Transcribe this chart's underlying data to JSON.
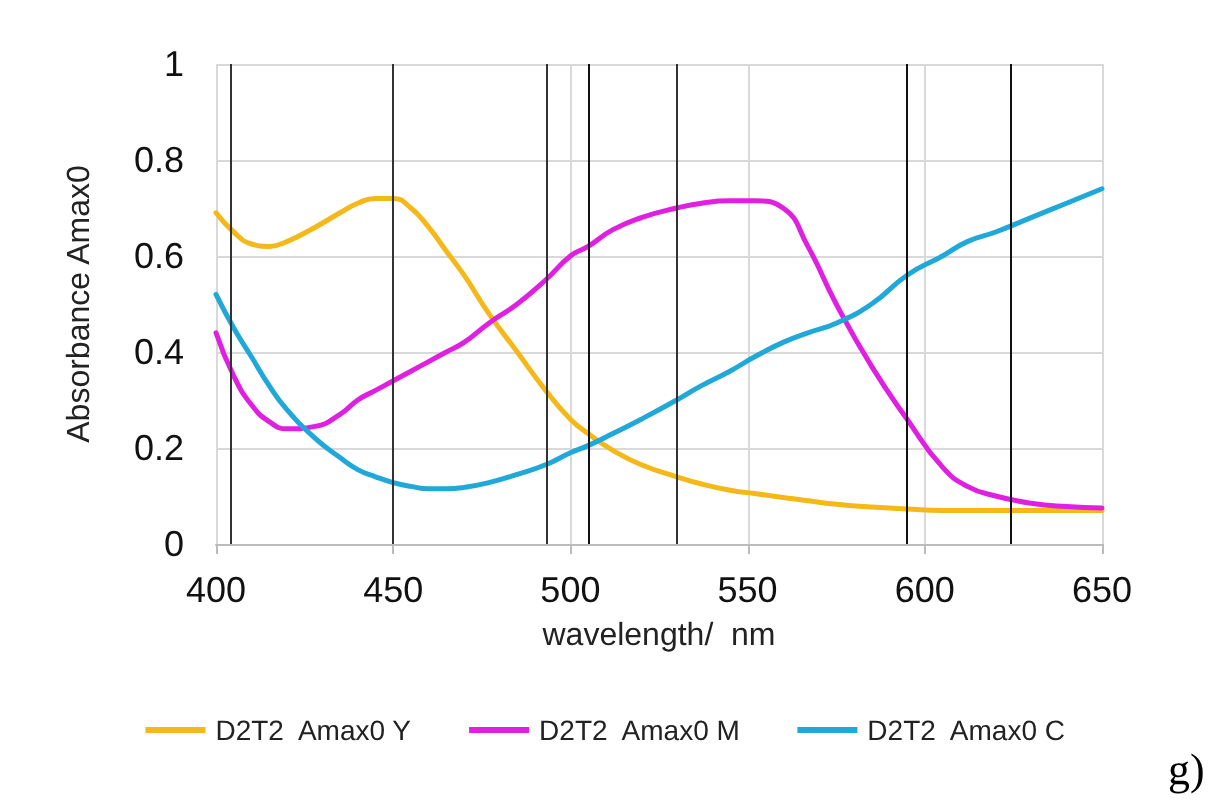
{
  "chart_data": {
    "type": "line",
    "xlabel": "wavelength/  nm",
    "ylabel": "Absorbance Amax0",
    "x": [
      400,
      405,
      410,
      415,
      420,
      428,
      435,
      440,
      445,
      450,
      455,
      460,
      465,
      470,
      477,
      485,
      493,
      500,
      505,
      512,
      520,
      530,
      537,
      545,
      552,
      560,
      567,
      575,
      585,
      595,
      605,
      612,
      620,
      630,
      640,
      650
    ],
    "series": [
      {
        "name": "D2T2  Amax0 Y",
        "color": "#f5b819",
        "values": [
          0.69,
          0.65,
          0.625,
          0.62,
          0.63,
          0.66,
          0.69,
          0.71,
          0.72,
          0.72,
          0.7,
          0.66,
          0.61,
          0.56,
          0.48,
          0.4,
          0.32,
          0.26,
          0.23,
          0.195,
          0.165,
          0.14,
          0.125,
          0.112,
          0.105,
          0.097,
          0.09,
          0.083,
          0.077,
          0.073,
          0.07,
          0.07,
          0.07,
          0.07,
          0.07,
          0.07
        ]
      },
      {
        "name": "D2T2  Amax0 M",
        "color": "#e020e0",
        "values": [
          0.44,
          0.35,
          0.29,
          0.255,
          0.24,
          0.245,
          0.27,
          0.3,
          0.32,
          0.34,
          0.36,
          0.38,
          0.4,
          0.42,
          0.46,
          0.5,
          0.55,
          0.6,
          0.62,
          0.655,
          0.68,
          0.7,
          0.71,
          0.715,
          0.715,
          0.7,
          0.62,
          0.5,
          0.37,
          0.26,
          0.16,
          0.12,
          0.1,
          0.085,
          0.078,
          0.075
        ]
      },
      {
        "name": "D2T2  Amax0 C",
        "color": "#1fa8d8",
        "values": [
          0.52,
          0.45,
          0.39,
          0.33,
          0.28,
          0.22,
          0.18,
          0.155,
          0.14,
          0.128,
          0.12,
          0.115,
          0.115,
          0.118,
          0.128,
          0.145,
          0.165,
          0.19,
          0.205,
          0.23,
          0.26,
          0.3,
          0.33,
          0.36,
          0.39,
          0.42,
          0.44,
          0.46,
          0.5,
          0.56,
          0.6,
          0.63,
          0.65,
          0.68,
          0.71,
          0.74
        ]
      }
    ],
    "xlim": [
      400,
      650
    ],
    "xticks": [
      400,
      450,
      500,
      550,
      600,
      650
    ],
    "ylim": [
      0,
      1
    ],
    "yticks": [
      0,
      0.2,
      0.4,
      0.6,
      0.8,
      1
    ],
    "ref_lines": [
      {
        "axis": "x",
        "value": 404,
        "color": "#333333"
      },
      {
        "axis": "x",
        "value": 450,
        "color": "#333333"
      },
      {
        "axis": "x",
        "value": 493,
        "color": "#333333"
      },
      {
        "axis": "x",
        "value": 505,
        "color": "#111111"
      },
      {
        "axis": "x",
        "value": 530,
        "color": "#333333"
      },
      {
        "axis": "x",
        "value": 595,
        "color": "#111111"
      },
      {
        "axis": "x",
        "value": 624,
        "color": "#111111"
      }
    ],
    "annotations": [
      "g)"
    ],
    "grid": true,
    "legend": "bottom",
    "marker": "none",
    "line_style": "solid"
  }
}
